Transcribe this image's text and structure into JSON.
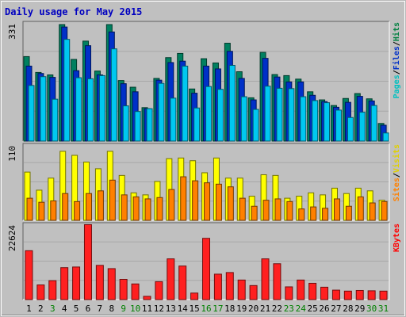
{
  "chart_data": {
    "type": "bar",
    "title": "Daily usage for May 2015",
    "categories": [
      "1",
      "2",
      "3",
      "4",
      "5",
      "6",
      "7",
      "8",
      "9",
      "10",
      "11",
      "12",
      "13",
      "14",
      "15",
      "16",
      "17",
      "18",
      "19",
      "20",
      "21",
      "22",
      "23",
      "24",
      "25",
      "26",
      "27",
      "28",
      "29",
      "30",
      "31"
    ],
    "weekend_days": [
      "3",
      "9",
      "10",
      "16",
      "17",
      "23",
      "24",
      "30",
      "31"
    ],
    "panels": [
      {
        "name": "top",
        "ymax_label": "331",
        "ymax": 331,
        "right_labels": [
          "Pages",
          "/",
          "Files",
          "/",
          "Hits"
        ],
        "right_label_colors": [
          "#00c0c0",
          "#000000",
          "#0030c8",
          "#000000",
          "#008040"
        ],
        "series": [
          {
            "name": "Hits",
            "color": "#008060",
            "values": [
              240,
              195,
              188,
              331,
              232,
              284,
              199,
              331,
              172,
              153,
              95,
              178,
              237,
              249,
              148,
              234,
              222,
              278,
              197,
              123,
              252,
              189,
              186,
              176,
              140,
              117,
              101,
              121,
              135,
              120,
              50
            ]
          },
          {
            "name": "Files",
            "color": "#0030c8",
            "values": [
              213,
              192,
              181,
              324,
              200,
              271,
              188,
              310,
              163,
              140,
              92,
              173,
              223,
              227,
              136,
              213,
              205,
              255,
              178,
              117,
              235,
              182,
              168,
              168,
              130,
              112,
              96,
              110,
              127,
              114,
              45
            ]
          },
          {
            "name": "Pages",
            "color": "#00c8f0",
            "values": [
              158,
              183,
              119,
              289,
              180,
              177,
              186,
              262,
              100,
              84,
              92,
              164,
              122,
              213,
              94,
              155,
              147,
              215,
              126,
              90,
              156,
              150,
              149,
              126,
              115,
              109,
              88,
              67,
              82,
              101,
              23
            ]
          }
        ]
      },
      {
        "name": "middle",
        "ymax_label": "110",
        "ymax": 110,
        "right_labels": [
          "Sites",
          "/",
          "Visits"
        ],
        "right_label_colors": [
          "#ff8000",
          "#000000",
          "#e0d000"
        ],
        "series": [
          {
            "name": "Visits",
            "color": "#ffff00",
            "values": [
              72,
              45,
              63,
              103,
              97,
              87,
              77,
              103,
              67,
              41,
              38,
              58,
              92,
              93,
              89,
              71,
              93,
              63,
              63,
              36,
              68,
              67,
              33,
              36,
              41,
              38,
              48,
              40,
              48,
              44,
              30
            ]
          },
          {
            "name": "Sites",
            "color": "#ff8000",
            "values": [
              33,
              27,
              29,
              40,
              28,
              40,
              44,
              60,
              38,
              35,
              32,
              34,
              46,
              65,
              59,
              56,
              54,
              50,
              33,
              21,
              30,
              32,
              28,
              17,
              20,
              18,
              32,
              21,
              35,
              26,
              28
            ]
          }
        ]
      },
      {
        "name": "bottom",
        "ymax_label": "22624",
        "ymax": 22624,
        "right_labels": [
          "KBytes"
        ],
        "right_label_colors": [
          "#ff0000"
        ],
        "series": [
          {
            "name": "KBytes",
            "color": "#ff2020",
            "values": [
              15000,
              4500,
              5800,
              9800,
              10000,
              23000,
              10500,
              9500,
              6200,
              4800,
              1000,
              5500,
              12500,
              10300,
              2000,
              18800,
              7800,
              8300,
              6000,
              4300,
              12500,
              11000,
              3900,
              6000,
              5000,
              3800,
              2900,
              2600,
              2800,
              2700,
              2600
            ]
          }
        ]
      }
    ]
  }
}
